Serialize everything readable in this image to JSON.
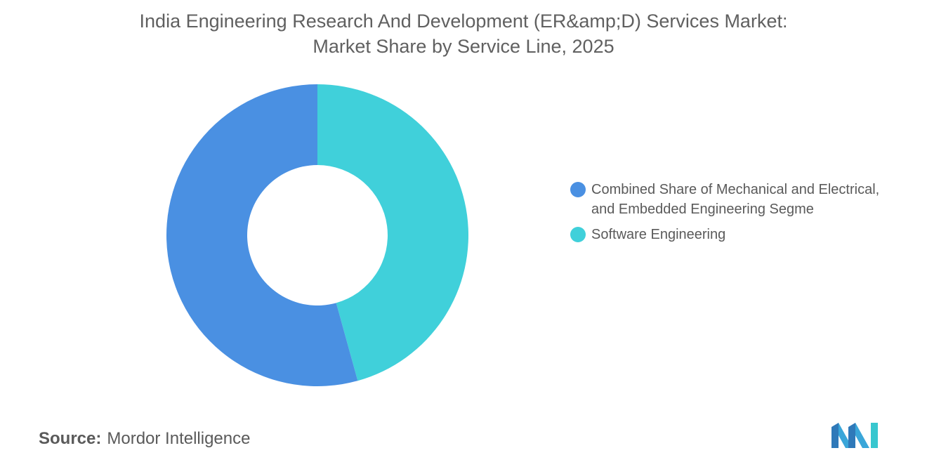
{
  "title_line1": "India Engineering Research And Development (ER&amp;D) Services Market:",
  "title_line2": "Market Share by Service Line, 2025",
  "source_label": "Source:",
  "source_value": "Mordor Intelligence",
  "logo_icon": "mordor-intelligence-logo-icon",
  "chart_data": {
    "type": "pie",
    "subtype": "donut",
    "title": "India Engineering Research And Development (ER&amp;D) Services Market: Market Share by Service Line, 2025",
    "legend_position": "right",
    "data_labels_shown": false,
    "series": [
      {
        "name": "Combined Share of Mechanical and Electrical, and Embedded Engineering Segme",
        "value": 54.3,
        "color": "#4a90e2"
      },
      {
        "name": "Software Engineering",
        "value": 45.7,
        "color": "#40d0da"
      }
    ]
  }
}
